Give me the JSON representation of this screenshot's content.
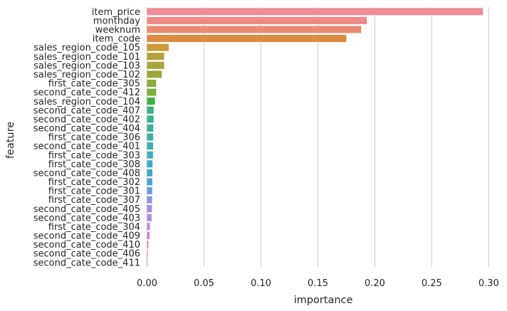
{
  "chart_data": {
    "type": "bar",
    "orientation": "horizontal",
    "xlabel": "importance",
    "ylabel": "feature",
    "xlim": [
      0,
      0.305
    ],
    "xticks": [
      "0.00",
      "0.05",
      "0.10",
      "0.15",
      "0.20",
      "0.25",
      "0.30"
    ],
    "xtick_values": [
      0,
      0.05,
      0.1,
      0.15,
      0.2,
      0.25,
      0.3
    ],
    "grid": "vertical",
    "categories": [
      "item_price",
      "monthday",
      "weeknum",
      "item_code",
      "sales_region_code_105",
      "sales_region_code_101",
      "sales_region_code_103",
      "sales_region_code_102",
      "first_cate_code_305",
      "second_cate_code_412",
      "sales_region_code_104",
      "second_cate_code_407",
      "second_cate_code_402",
      "second_cate_code_404",
      "first_cate_code_306",
      "second_cate_code_401",
      "first_cate_code_303",
      "first_cate_code_308",
      "second_cate_code_408",
      "first_cate_code_302",
      "first_cate_code_301",
      "first_cate_code_307",
      "second_cate_code_405",
      "second_cate_code_403",
      "first_cate_code_304",
      "second_cate_code_409",
      "second_cate_code_410",
      "second_cate_code_406",
      "second_cate_code_411"
    ],
    "values": [
      0.295,
      0.193,
      0.188,
      0.175,
      0.019,
      0.015,
      0.015,
      0.013,
      0.008,
      0.008,
      0.007,
      0.0058,
      0.0057,
      0.0055,
      0.0054,
      0.0053,
      0.0052,
      0.0048,
      0.0047,
      0.0046,
      0.0045,
      0.0044,
      0.0043,
      0.004,
      0.0025,
      0.0022,
      0.0012,
      0.0006,
      0.0004
    ],
    "colors": [
      "#f08c96",
      "#ef8a88",
      "#ec8b73",
      "#dc8c40",
      "#cd9a3a",
      "#b5a03b",
      "#a9a43c",
      "#9ba63c",
      "#8fab3c",
      "#7aaf3c",
      "#3bb33c",
      "#3bb07a",
      "#3bb08c",
      "#3bb09a",
      "#3bb0a6",
      "#3bafb0",
      "#3baeb8",
      "#3aabc0",
      "#3fa8c8",
      "#4aa3d4",
      "#6c9be0",
      "#8a93e4",
      "#a08ce6",
      "#b688e4",
      "#c884e0",
      "#d67ed6",
      "#e07ccc",
      "#e87ac0",
      "#ee7cb4"
    ]
  }
}
